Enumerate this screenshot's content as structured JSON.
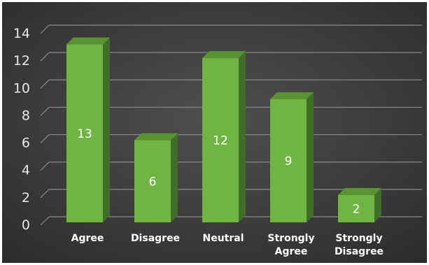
{
  "chart_data": {
    "type": "bar",
    "style": "3d-column",
    "categories": [
      [
        "Agree"
      ],
      [
        "Disagree"
      ],
      [
        "Neutral"
      ],
      [
        "Strongly",
        "Agree"
      ],
      [
        "Strongly",
        "Disagree"
      ]
    ],
    "values": [
      13,
      6,
      12,
      9,
      2
    ],
    "ylim": [
      0,
      14
    ],
    "yticks": [
      "0",
      "2",
      "4",
      "6",
      "8",
      "10",
      "12",
      "14"
    ],
    "grid": true,
    "legend": "none",
    "data_labels": true,
    "colors": {
      "background_light": "#4f4f4f",
      "background_dark": "#2b2b2b",
      "bar_front": "#70b444",
      "bar_side": "#3f6f26",
      "bar_top": "#5a9432",
      "gridline": "#8a8a8a"
    }
  }
}
